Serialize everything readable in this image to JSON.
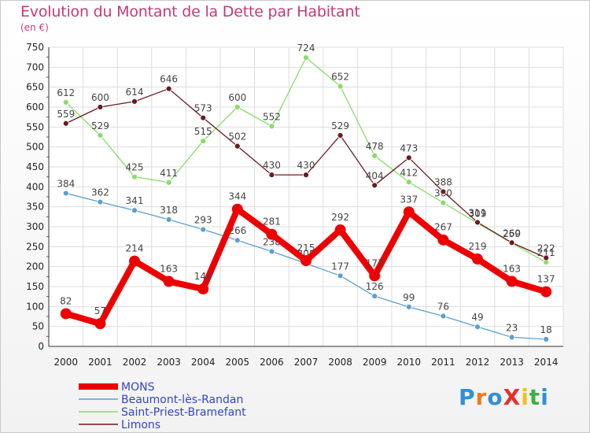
{
  "header": {
    "title": "Evolution du Montant de la Dette par Habitant",
    "subtitle": "(en €)"
  },
  "logo": {
    "text": "ProXiti",
    "colors": [
      "#2f8fd8",
      "#f07820",
      "#2f8fd8",
      "#e8302a",
      "#f0c020",
      "#3cb04a",
      "#2f8fd8"
    ]
  },
  "chart_data": {
    "type": "line",
    "title": "Evolution du Montant de la Dette par Habitant",
    "ylabel": "(en €)",
    "xlabel": "",
    "ylim": [
      0,
      750
    ],
    "yticks": [
      0,
      50,
      100,
      150,
      200,
      250,
      300,
      350,
      400,
      450,
      500,
      550,
      600,
      650,
      700,
      750
    ],
    "grid": true,
    "legend": "bottom-left",
    "categories": [
      "2000",
      "2001",
      "2002",
      "2003",
      "2004",
      "2005",
      "2006",
      "2007",
      "2008",
      "2009",
      "2010",
      "2011",
      "2012",
      "2013",
      "2014"
    ],
    "series": [
      {
        "name": "Saint-Priest-Bramefant",
        "color": "#88dd66",
        "values": [
          612,
          529,
          425,
          411,
          515,
          600,
          552,
          724,
          652,
          478,
          412,
          360,
          309,
          259,
          211
        ]
      },
      {
        "name": "Limons",
        "color": "#6b1a22",
        "values": [
          559,
          600,
          614,
          646,
          573,
          502,
          430,
          430,
          529,
          404,
          473,
          388,
          311,
          260,
          222
        ]
      },
      {
        "name": "Beaumont-lès-Randan",
        "color": "#5a9fd4",
        "values": [
          384,
          362,
          341,
          318,
          293,
          266,
          238,
          208,
          177,
          126,
          99,
          76,
          49,
          23,
          18
        ]
      },
      {
        "name": "MONS",
        "color": "#ee0000",
        "values": [
          82,
          57,
          214,
          163,
          144,
          344,
          281,
          215,
          292,
          177,
          337,
          267,
          219,
          163,
          137
        ]
      }
    ],
    "legend_order": [
      "MONS",
      "Beaumont-lès-Randan",
      "Saint-Priest-Bramefant",
      "Limons"
    ]
  }
}
